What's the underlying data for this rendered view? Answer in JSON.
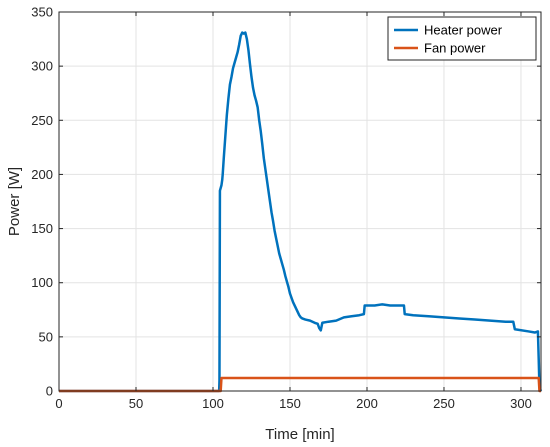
{
  "chart_data": {
    "type": "line",
    "xlabel": "Time [min]",
    "ylabel": "Power [W]",
    "xlim": [
      0,
      313
    ],
    "ylim": [
      0,
      350
    ],
    "xticks": [
      0,
      50,
      100,
      150,
      200,
      250,
      300
    ],
    "yticks": [
      0,
      50,
      100,
      150,
      200,
      250,
      300,
      350
    ],
    "grid": true,
    "legend_position": "top-right",
    "series": [
      {
        "name": "Heater power",
        "color": "#0072BD",
        "points": [
          [
            0,
            0
          ],
          [
            104,
            0
          ],
          [
            104.2,
            10
          ],
          [
            104.5,
            185
          ],
          [
            105.5,
            190
          ],
          [
            106,
            195
          ],
          [
            106.3,
            200
          ],
          [
            107,
            215
          ],
          [
            108,
            235
          ],
          [
            109,
            255
          ],
          [
            110,
            270
          ],
          [
            111,
            283
          ],
          [
            112,
            290
          ],
          [
            113,
            298
          ],
          [
            114,
            303
          ],
          [
            115,
            308
          ],
          [
            116,
            313
          ],
          [
            117,
            320
          ],
          [
            118,
            328
          ],
          [
            119,
            331
          ],
          [
            120,
            330
          ],
          [
            121,
            331
          ],
          [
            122,
            325
          ],
          [
            123,
            315
          ],
          [
            124,
            302
          ],
          [
            125,
            290
          ],
          [
            126,
            280
          ],
          [
            127,
            273
          ],
          [
            128,
            268
          ],
          [
            129,
            262
          ],
          [
            130,
            250
          ],
          [
            131,
            240
          ],
          [
            132,
            228
          ],
          [
            133,
            215
          ],
          [
            134,
            205
          ],
          [
            135,
            195
          ],
          [
            136,
            185
          ],
          [
            137,
            175
          ],
          [
            138,
            165
          ],
          [
            139,
            157
          ],
          [
            140,
            148
          ],
          [
            141,
            141
          ],
          [
            142,
            134
          ],
          [
            143,
            127
          ],
          [
            144,
            122
          ],
          [
            145,
            117
          ],
          [
            146,
            112
          ],
          [
            147,
            106
          ],
          [
            148,
            101
          ],
          [
            149,
            96
          ],
          [
            150,
            90
          ],
          [
            151,
            86
          ],
          [
            152,
            82
          ],
          [
            153,
            79
          ],
          [
            154,
            76
          ],
          [
            155,
            73
          ],
          [
            156,
            70
          ],
          [
            157,
            68
          ],
          [
            158,
            67
          ],
          [
            160,
            66
          ],
          [
            163,
            65
          ],
          [
            166,
            63
          ],
          [
            168,
            62
          ],
          [
            169,
            58
          ],
          [
            170,
            56
          ],
          [
            171,
            63
          ],
          [
            175,
            64
          ],
          [
            180,
            65
          ],
          [
            185,
            68
          ],
          [
            190,
            69
          ],
          [
            195,
            70
          ],
          [
            198,
            71
          ],
          [
            198.5,
            79
          ],
          [
            205,
            79
          ],
          [
            210,
            80
          ],
          [
            215,
            79
          ],
          [
            218,
            79
          ],
          [
            224,
            79
          ],
          [
            224.5,
            71
          ],
          [
            230,
            70
          ],
          [
            240,
            69
          ],
          [
            250,
            68
          ],
          [
            260,
            67
          ],
          [
            270,
            66
          ],
          [
            280,
            65
          ],
          [
            290,
            64
          ],
          [
            295,
            64
          ],
          [
            296,
            57
          ],
          [
            305,
            55
          ],
          [
            309,
            54
          ],
          [
            311,
            55
          ],
          [
            311.5,
            30
          ],
          [
            312,
            3
          ],
          [
            313,
            0
          ]
        ]
      },
      {
        "name": "Fan power",
        "color": "#D95319",
        "points": [
          [
            0,
            0
          ],
          [
            105,
            0
          ],
          [
            105.5,
            12
          ],
          [
            311.5,
            12
          ],
          [
            312,
            0
          ],
          [
            313,
            0
          ]
        ]
      }
    ]
  }
}
